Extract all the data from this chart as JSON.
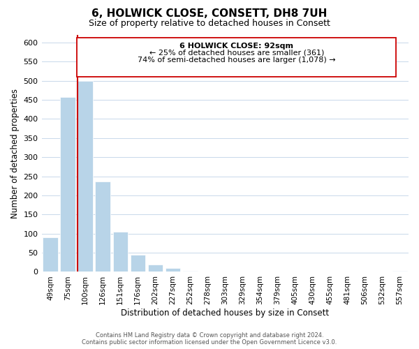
{
  "title": "6, HOLWICK CLOSE, CONSETT, DH8 7UH",
  "subtitle": "Size of property relative to detached houses in Consett",
  "xlabel": "Distribution of detached houses by size in Consett",
  "ylabel": "Number of detached properties",
  "bar_labels": [
    "49sqm",
    "75sqm",
    "100sqm",
    "126sqm",
    "151sqm",
    "176sqm",
    "202sqm",
    "227sqm",
    "252sqm",
    "278sqm",
    "303sqm",
    "329sqm",
    "354sqm",
    "379sqm",
    "405sqm",
    "430sqm",
    "455sqm",
    "481sqm",
    "506sqm",
    "532sqm",
    "557sqm"
  ],
  "bar_values": [
    90,
    457,
    500,
    236,
    105,
    45,
    20,
    10,
    2,
    0,
    0,
    0,
    0,
    0,
    0,
    0,
    0,
    0,
    0,
    0,
    2
  ],
  "bar_color": "#b8d4e8",
  "highlight_bar_index": 2,
  "highlight_color": "#cc0000",
  "ylim": [
    0,
    620
  ],
  "yticks": [
    0,
    50,
    100,
    150,
    200,
    250,
    300,
    350,
    400,
    450,
    500,
    550,
    600
  ],
  "annotation_line1": "6 HOLWICK CLOSE: 92sqm",
  "annotation_line2": "← 25% of detached houses are smaller (361)",
  "annotation_line3": "74% of semi-detached houses are larger (1,078) →",
  "footer_line1": "Contains HM Land Registry data © Crown copyright and database right 2024.",
  "footer_line2": "Contains public sector information licensed under the Open Government Licence v3.0.",
  "background_color": "#ffffff",
  "grid_color": "#c8d8ea",
  "title_fontsize": 11,
  "subtitle_fontsize": 9
}
